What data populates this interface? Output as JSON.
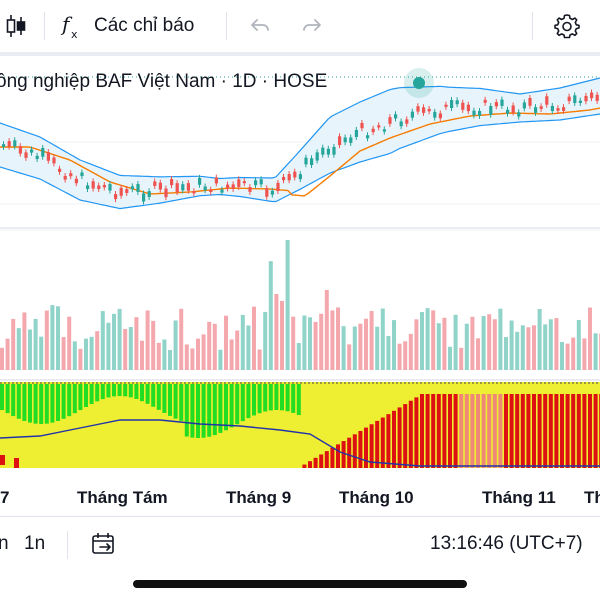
{
  "toolbar": {
    "indicators_label": "Các chỉ báo",
    "icons": [
      "candlestick-icon",
      "function-icon",
      "undo-icon",
      "redo-icon",
      "gear-icon"
    ]
  },
  "chart": {
    "title": "ông nghiệp BAF Việt Nam · 1D · HOSE",
    "colors": {
      "up": "#26a69a",
      "down": "#ef5350",
      "vol_up": "#8fd3c9",
      "vol_down": "#f4a8ad",
      "bb_line": "#2196f3",
      "bb_fill": "#e8f4fb",
      "ma": "#f57c00",
      "ind_green": "#22dd22",
      "ind_yellow": "#eeee33",
      "ind_red": "#dd1111",
      "ind_salmon": "#f08878",
      "ind_line": "#2233aa"
    }
  },
  "x_axis": {
    "labels": [
      "7",
      "Tháng Tám",
      "Tháng 9",
      "Tháng 10",
      "Tháng 11",
      "Th"
    ]
  },
  "bottom_bar": {
    "range_a": "n",
    "range_b": "1n",
    "time": "13:16:46 (UTC+7)"
  }
}
